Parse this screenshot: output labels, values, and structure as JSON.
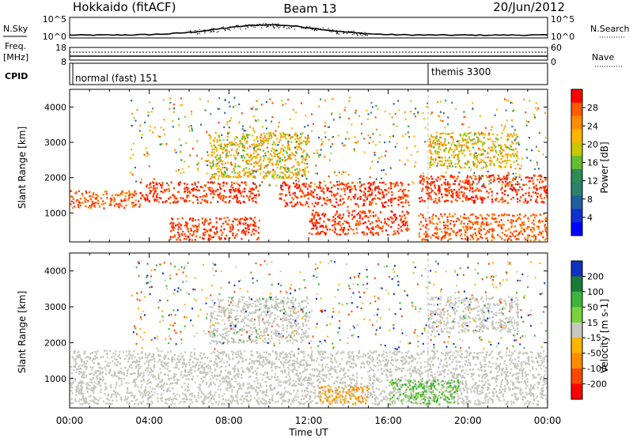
{
  "header": {
    "radar": "Hokkaido (fitACF)",
    "beam": "Beam 13",
    "date": "20/Jun/2012"
  },
  "noise_panel": {
    "left_label": "N.Sky",
    "left_ticks": [
      "10^5",
      "10^0"
    ],
    "right_label": "N.Search",
    "right_ticks": [
      "10^5",
      "10^0"
    ]
  },
  "freq_panel": {
    "left_label_line1": "Freq.",
    "left_label_line2": "[MHz]",
    "left_ticks": [
      "18",
      "8"
    ],
    "right_label": "Nave",
    "right_ticks": [
      "60",
      "0"
    ]
  },
  "cpid_panel": {
    "label": "CPID",
    "segments": [
      {
        "text": "normal (fast) 151",
        "start_hour": 0
      },
      {
        "text": "themis 3300",
        "start_hour": 18
      }
    ]
  },
  "time_axis": {
    "label": "Time UT",
    "ticks": [
      "00:00",
      "04:00",
      "08:00",
      "12:00",
      "16:00",
      "20:00",
      "00:00"
    ],
    "range_hours": [
      0,
      24
    ]
  },
  "chart_data": [
    {
      "type": "heatmap",
      "name": "power",
      "xlabel": "Time UT",
      "ylabel": "Slant Range [km]",
      "xlim": [
        0,
        24
      ],
      "ylim": [
        180,
        4500
      ],
      "yticks": [
        "1000",
        "2000",
        "3000",
        "4000"
      ],
      "colorbar": {
        "label": "Power [dB]",
        "ticks": [
          "28",
          "24",
          "20",
          "16",
          "12",
          "8",
          "4"
        ],
        "range": [
          0,
          32
        ],
        "colors": [
          "#ff0000",
          "#ff5a00",
          "#ff8c00",
          "#ffb400",
          "#c8c800",
          "#64be32",
          "#2e8b57",
          "#2f7f6f",
          "#1f5fa0",
          "#1030d0",
          "#0000ff"
        ]
      },
      "bands": [
        {
          "t_start": 0.0,
          "t_end": 3.5,
          "r_low": 1150,
          "r_high": 1650,
          "level": "orange-red"
        },
        {
          "t_start": 3.5,
          "t_end": 9.5,
          "r_low": 1300,
          "r_high": 1900,
          "level": "red"
        },
        {
          "t_start": 7.0,
          "t_end": 12.0,
          "r_low": 2000,
          "r_high": 3300,
          "level": "orange"
        },
        {
          "t_start": 10.5,
          "t_end": 17.0,
          "r_low": 1200,
          "r_high": 1900,
          "level": "red"
        },
        {
          "t_start": 5.0,
          "t_end": 9.5,
          "r_low": 250,
          "r_high": 900,
          "level": "red"
        },
        {
          "t_start": 12.0,
          "t_end": 17.0,
          "r_low": 400,
          "r_high": 1100,
          "level": "red"
        },
        {
          "t_start": 17.5,
          "t_end": 24.0,
          "r_low": 1300,
          "r_high": 2100,
          "level": "red"
        },
        {
          "t_start": 17.5,
          "t_end": 24.0,
          "r_low": 250,
          "r_high": 1000,
          "level": "orange-red"
        },
        {
          "t_start": 18.0,
          "t_end": 22.5,
          "r_low": 2300,
          "r_high": 3300,
          "level": "orange"
        }
      ]
    },
    {
      "type": "heatmap",
      "name": "velocity",
      "xlabel": "Time UT",
      "ylabel": "Slant Range [km]",
      "xlim": [
        0,
        24
      ],
      "ylim": [
        180,
        4500
      ],
      "yticks": [
        "1000",
        "2000",
        "3000",
        "4000"
      ],
      "colorbar": {
        "label": "Velocity [m s-1]",
        "ticks": [
          "200",
          "100",
          "50",
          "15",
          "-15",
          "-50",
          "-100",
          "-200"
        ],
        "colors": [
          "#1030c0",
          "#1a7a3a",
          "#3cb43c",
          "#78d23c",
          "#c8c8c0",
          "#ffb400",
          "#ff8c00",
          "#ff4600",
          "#ff0000"
        ]
      },
      "bands": [
        {
          "t_start": 0.0,
          "t_end": 24.0,
          "r_low": 300,
          "r_high": 1800,
          "level": "grey"
        },
        {
          "t_start": 7.0,
          "t_end": 12.0,
          "r_low": 2000,
          "r_high": 3300,
          "level": "grey"
        },
        {
          "t_start": 12.5,
          "t_end": 15.0,
          "r_low": 300,
          "r_high": 800,
          "level": "orange"
        },
        {
          "t_start": 16.0,
          "t_end": 19.5,
          "r_low": 300,
          "r_high": 1000,
          "level": "green"
        },
        {
          "t_start": 18.0,
          "t_end": 22.5,
          "r_low": 2300,
          "r_high": 3300,
          "level": "grey"
        }
      ]
    }
  ]
}
